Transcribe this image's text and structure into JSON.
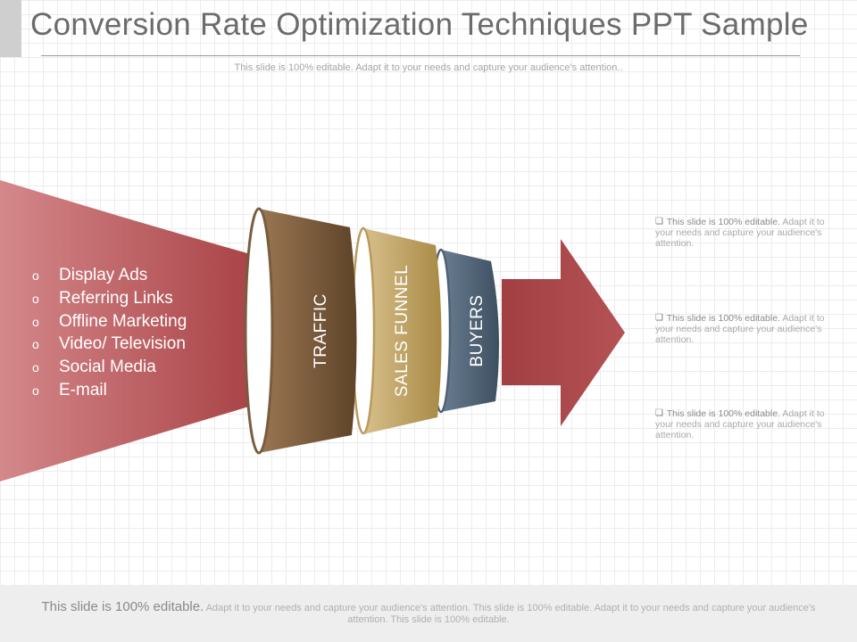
{
  "slide": {
    "title": "Conversion Rate Optimization Techniques PPT Sample",
    "subtitle": "This slide is 100% editable. Adapt it to your needs and capture your audience's attention.."
  },
  "sources": {
    "bullet": "o",
    "items": [
      "Display Ads",
      "Referring Links",
      "Offline Marketing",
      "Video/ Television",
      "Social Media",
      "E-mail"
    ]
  },
  "stages": [
    {
      "label": "TRAFFIC",
      "color": "#7a5c3e"
    },
    {
      "label": "SALES FUNNEL",
      "color": "#b99a5c"
    },
    {
      "label": "BUYERS",
      "color": "#4f6276"
    }
  ],
  "notes": [
    {
      "lead": "This slide is 100% editable.",
      "body": "Adapt it to your needs and capture your audience's attention."
    },
    {
      "lead": "This slide is 100% editable.",
      "body": "Adapt it to your needs and capture your audience's attention."
    },
    {
      "lead": "This slide is 100% editable.",
      "body": "Adapt it to your needs and capture your audience's attention."
    }
  ],
  "footer": {
    "lead": "This slide is 100% editable.",
    "body": "Adapt it to your needs and capture your audience's attention. This slide is 100% editable. Adapt it to your needs and capture your audience's attention. This slide is 100% editable."
  },
  "colors": {
    "accent_red": "#a8484a",
    "checkbox": "#777777"
  },
  "icons": {
    "note_marker": "checkbox-icon",
    "list_marker": "circle-bullet-icon"
  }
}
